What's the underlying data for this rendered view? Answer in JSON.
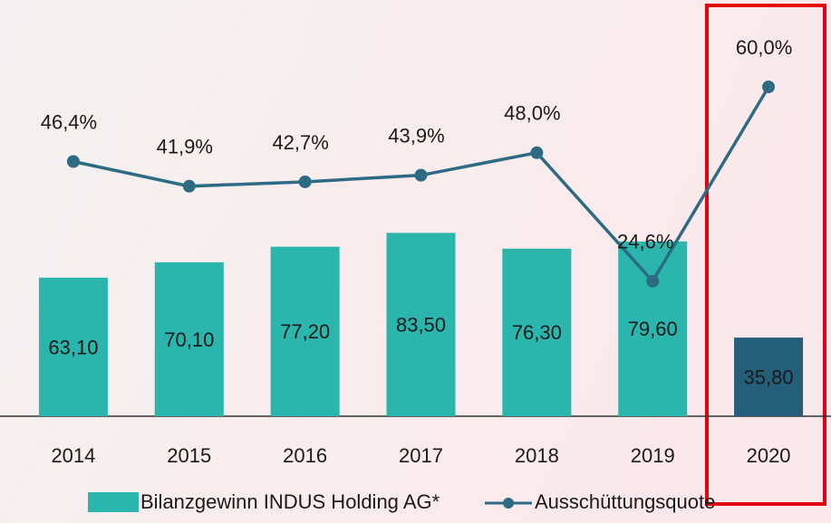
{
  "chart_data": {
    "type": "bar",
    "categories": [
      "2014",
      "2015",
      "2016",
      "2017",
      "2018",
      "2019",
      "2020"
    ],
    "series": [
      {
        "name": "Bilanzgewinn INDUS Holding AG*",
        "type": "bar",
        "color": "#2ab5ad",
        "colors": [
          "#2ab5ad",
          "#2ab5ad",
          "#2ab5ad",
          "#2ab5ad",
          "#2ab5ad",
          "#2ab5ad",
          "#245e78"
        ],
        "values": [
          63.1,
          70.1,
          77.2,
          83.5,
          76.3,
          79.6,
          35.8
        ],
        "value_labels": [
          "63,10",
          "70,10",
          "77,20",
          "83,50",
          "76,30",
          "79,60",
          "35,80"
        ]
      },
      {
        "name": "Ausschüttungsquote",
        "type": "line",
        "axis": "y2",
        "color": "#2d6b84",
        "values": [
          46.4,
          41.9,
          42.7,
          43.9,
          48.0,
          24.6,
          60.0
        ],
        "value_labels": [
          "46,4%",
          "41,9%",
          "42,7%",
          "43,9%",
          "48,0%",
          "24,6%",
          "60,0%"
        ]
      }
    ],
    "ylim": [
      0,
      150
    ],
    "y2lim": [
      0,
      60
    ]
  }
}
